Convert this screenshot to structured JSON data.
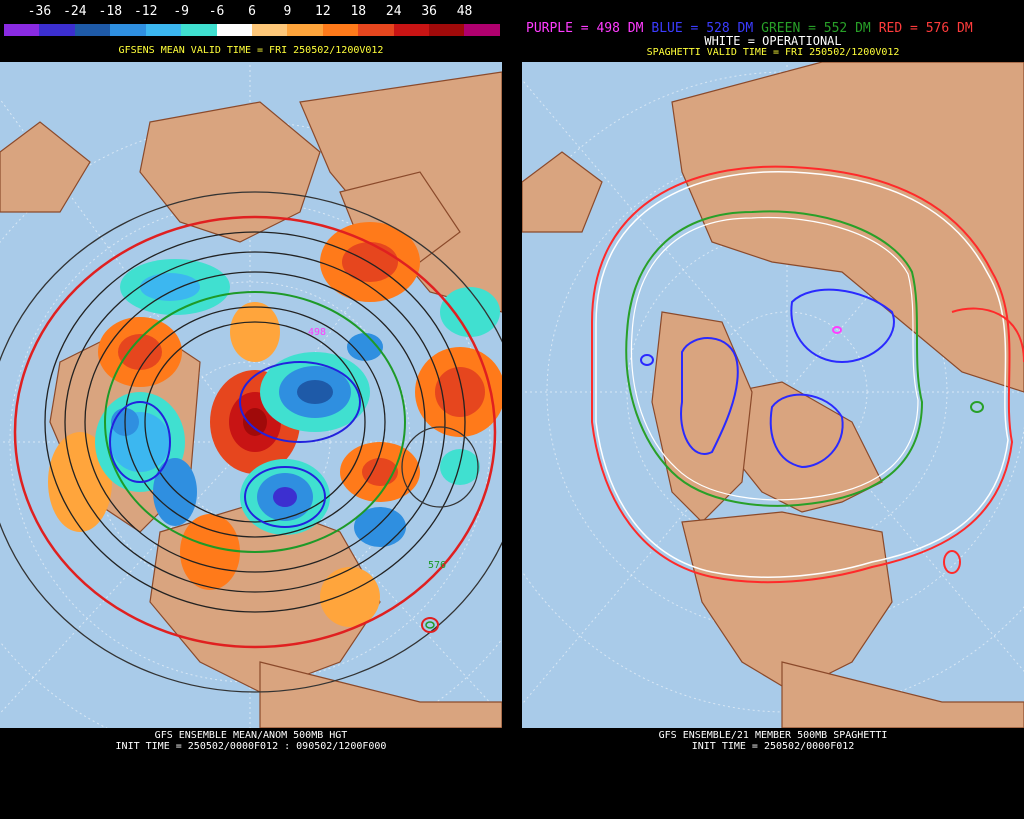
{
  "left": {
    "legend_labels": [
      "-36",
      "-24",
      "-18",
      "-12",
      "-9",
      "-6",
      "6",
      "9",
      "12",
      "18",
      "24",
      "36",
      "48"
    ],
    "legend_colors": [
      "#8a2be2",
      "#3c2fd0",
      "#1e5aa8",
      "#2f8fe0",
      "#3cb7f0",
      "#40e0d0",
      "#ffffff",
      "#ffc87a",
      "#ffa53c",
      "#ff7a1a",
      "#e6461e",
      "#c81414",
      "#a00a0a",
      "#b0006e"
    ],
    "valid_title": "GFSENS MEAN VALID TIME = FRI 250502/1200V012",
    "footer_line1": "GFS ENSEMBLE MEAN/ANOM 500MB HGT",
    "footer_line2": "INIT TIME = 250502/0000F012 : 090502/1200F000",
    "map_labels": [
      "498",
      "576"
    ]
  },
  "right": {
    "key": {
      "purple": "PURPLE = 498 DM",
      "blue": "BLUE = 528 DM",
      "green": "GREEN = 552 DM",
      "red": "RED = 576 DM",
      "white": "WHITE = OPERATIONAL"
    },
    "key_colors": {
      "purple": "#ff3cff",
      "blue": "#3c3cff",
      "green": "#28a028",
      "red": "#ff3c3c",
      "white": "#ffffff"
    },
    "valid_title": "SPAGHETTI VALID TIME = FRI 250502/1200V012",
    "footer_line1": "GFS ENSEMBLE/21 MEMBER 500MB SPAGHETTI",
    "footer_line2": "INIT TIME = 250502/0000F012"
  },
  "colors": {
    "ocean": "#a9cbe9",
    "land": "#d9a47f",
    "coast": "#8b4a2b"
  }
}
